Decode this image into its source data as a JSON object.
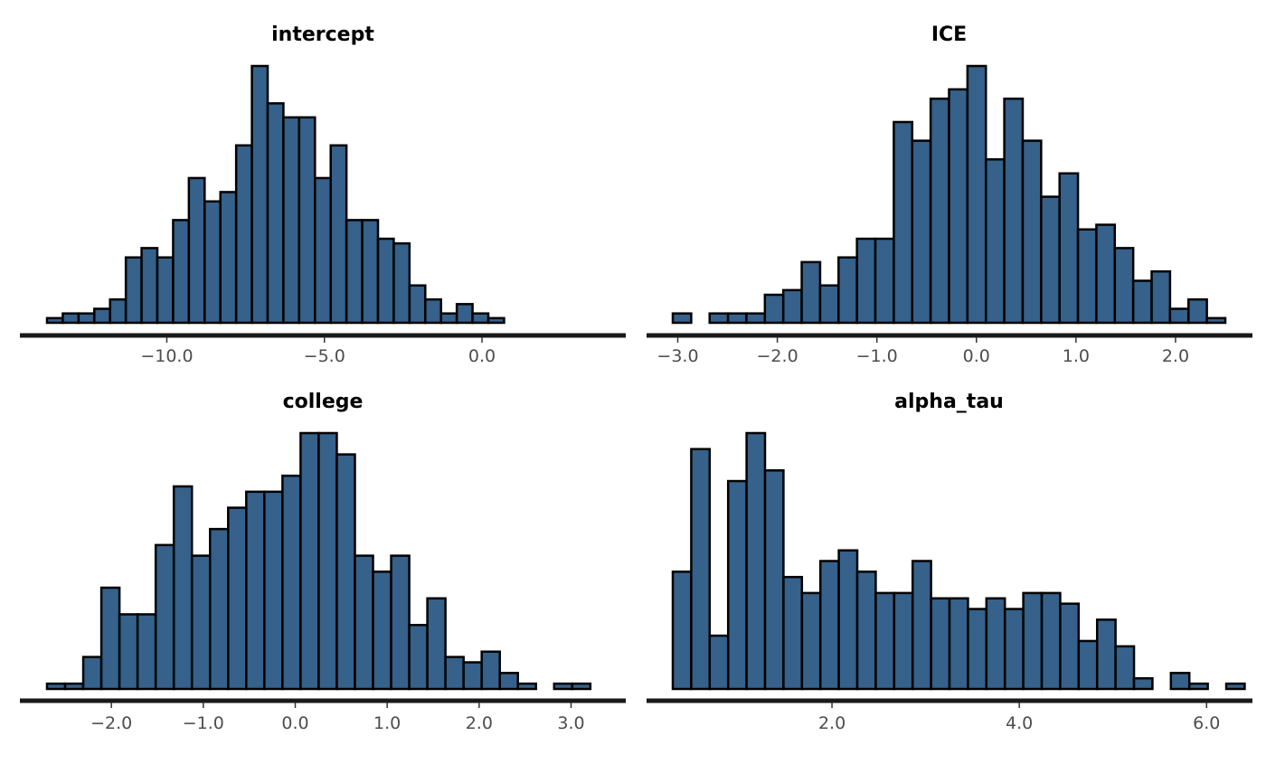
{
  "colors": {
    "bar_fill": "#35618a",
    "bar_stroke": "#000000",
    "axis": "#1a1a1a",
    "tick_text": "#4d4d4d"
  },
  "chart_data": [
    {
      "type": "histogram",
      "title": "intercept",
      "bin_edges_start": -13.8,
      "bin_width": 0.5,
      "counts": [
        1,
        2,
        2,
        3,
        5,
        14,
        16,
        14,
        22,
        31,
        26,
        28,
        38,
        55,
        47,
        44,
        44,
        31,
        38,
        22,
        22,
        18,
        17,
        8,
        5,
        2,
        4,
        2,
        1
      ],
      "ymax": 55,
      "xlim": [
        -13.8,
        3.7
      ],
      "xticks": [
        -10.0,
        -5.0,
        0.0
      ],
      "xtick_labels": [
        "−10.0",
        "−5.0",
        "0.0"
      ]
    },
    {
      "type": "histogram",
      "title": "ICE",
      "bin_edges_start": -3.05,
      "bin_width": 0.185,
      "counts": [
        2,
        0,
        2,
        2,
        2,
        6,
        7,
        13,
        8,
        14,
        18,
        18,
        43,
        39,
        48,
        50,
        55,
        35,
        48,
        39,
        27,
        32,
        20,
        21,
        16,
        9,
        11,
        3,
        5,
        1
      ],
      "ymax": 55,
      "xlim": [
        -3.05,
        2.5
      ],
      "xticks": [
        -3.0,
        -2.0,
        -1.0,
        0.0,
        1.0,
        2.0
      ],
      "xtick_labels": [
        "−3.0",
        "−2.0",
        "−1.0",
        "0.0",
        "1.0",
        "2.0"
      ]
    },
    {
      "type": "histogram",
      "title": "college",
      "bin_edges_start": -2.7,
      "bin_width": 0.197,
      "counts": [
        1,
        1,
        6,
        19,
        14,
        14,
        27,
        38,
        25,
        30,
        34,
        37,
        37,
        40,
        48,
        48,
        44,
        25,
        22,
        25,
        12,
        17,
        6,
        5,
        7,
        3,
        1,
        0,
        1,
        1
      ],
      "ymax": 48,
      "xlim": [
        -2.7,
        3.3
      ],
      "xticks": [
        -2.0,
        -1.0,
        0.0,
        1.0,
        2.0,
        3.0
      ],
      "xtick_labels": [
        "−2.0",
        "−1.0",
        "0.0",
        "1.0",
        "2.0",
        "3.0"
      ]
    },
    {
      "type": "histogram",
      "title": "alpha_tau",
      "bin_edges_start": 0.3,
      "bin_width": 0.197,
      "counts": [
        22,
        45,
        10,
        39,
        48,
        41,
        21,
        18,
        24,
        26,
        22,
        18,
        18,
        24,
        17,
        17,
        15,
        17,
        15,
        18,
        18,
        16,
        9,
        13,
        8,
        2,
        0,
        3,
        1,
        0,
        1
      ],
      "ymax": 48,
      "xlim": [
        0.3,
        6.2
      ],
      "xticks": [
        2.0,
        4.0,
        6.0
      ],
      "xtick_labels": [
        "2.0",
        "4.0",
        "6.0"
      ]
    }
  ]
}
